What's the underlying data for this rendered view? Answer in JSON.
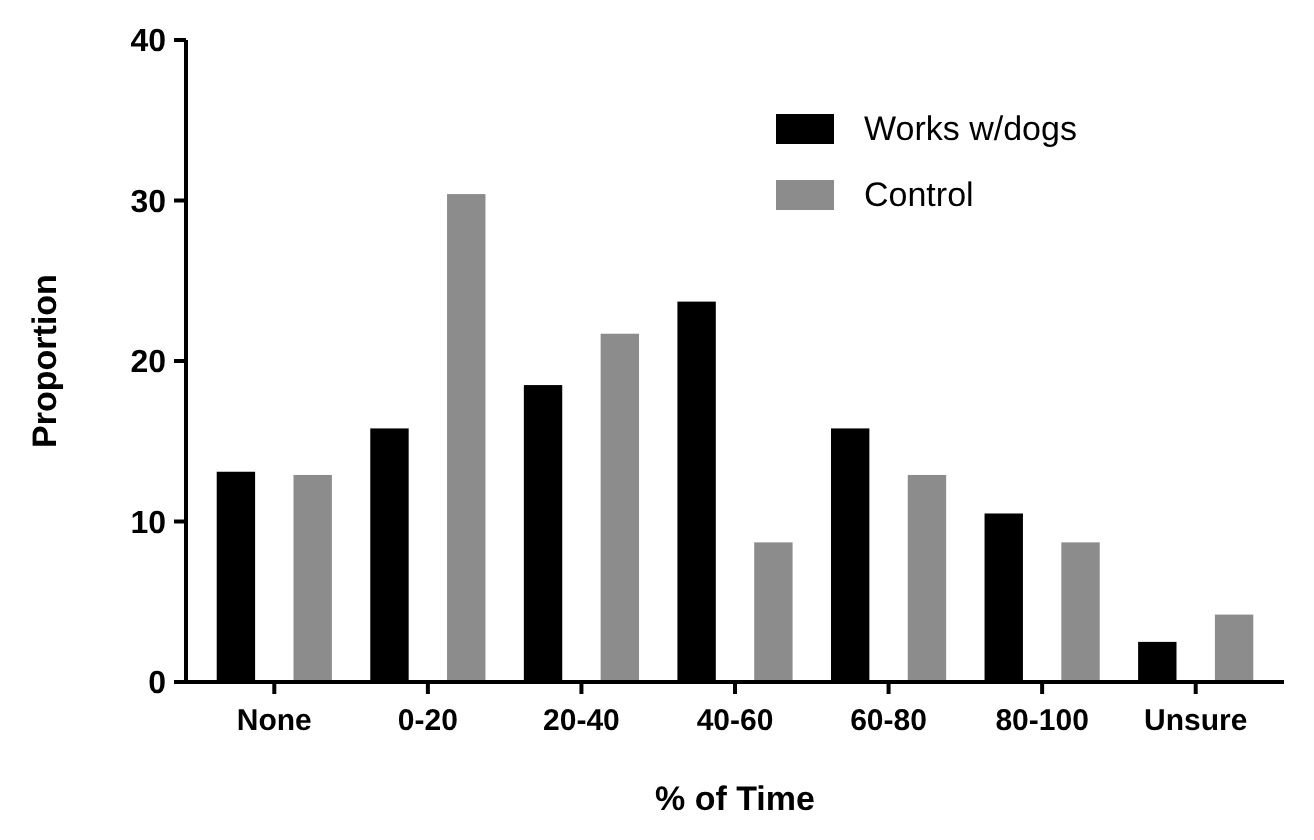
{
  "chart_data": {
    "type": "bar",
    "xlabel": "% of Time",
    "ylabel": "Proportion",
    "categories": [
      "None",
      "0-20",
      "20-40",
      "40-60",
      "60-80",
      "80-100",
      "Unsure"
    ],
    "series": [
      {
        "name": "Works w/dogs",
        "color": "#000000",
        "values": [
          13.1,
          15.8,
          18.5,
          23.7,
          15.8,
          10.5,
          2.5
        ]
      },
      {
        "name": "Control",
        "color": "#8c8c8c",
        "values": [
          12.9,
          30.4,
          21.7,
          8.7,
          12.9,
          8.7,
          4.2
        ]
      }
    ],
    "ylim": [
      0,
      40
    ],
    "yticks": [
      0,
      10,
      20,
      30,
      40
    ],
    "grid": false,
    "legend": "top right"
  }
}
